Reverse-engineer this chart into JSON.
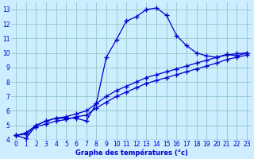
{
  "title": "Graphe des températures (°c)",
  "bg_color": "#cceeff",
  "line_color": "#0000cc",
  "grid_color": "#99cccc",
  "xlim": [
    -0.5,
    23.5
  ],
  "ylim": [
    4,
    13.5
  ],
  "xticks": [
    0,
    1,
    2,
    3,
    4,
    5,
    6,
    7,
    8,
    9,
    10,
    11,
    12,
    13,
    14,
    15,
    16,
    17,
    18,
    19,
    20,
    21,
    22,
    23
  ],
  "yticks": [
    4,
    5,
    6,
    7,
    8,
    9,
    10,
    11,
    12,
    13
  ],
  "curve1_x": [
    0,
    1,
    2,
    3,
    4,
    5,
    6,
    7,
    8,
    9,
    10,
    11,
    12,
    13,
    14,
    15,
    16,
    17,
    18,
    19,
    20,
    21,
    22,
    23
  ],
  "curve1_y": [
    4.3,
    4.1,
    5.0,
    5.3,
    5.5,
    5.5,
    5.5,
    5.3,
    6.5,
    9.7,
    10.9,
    12.2,
    12.5,
    13.0,
    13.1,
    12.6,
    11.2,
    10.5,
    10.0,
    9.8,
    9.7,
    9.9,
    9.8,
    10.0
  ],
  "curve2_x": [
    0,
    1,
    2,
    3,
    4,
    5,
    6,
    7,
    8,
    9,
    10,
    11,
    12,
    13,
    14,
    15,
    16,
    17,
    18,
    19,
    20,
    21,
    22,
    23
  ],
  "curve2_y": [
    4.3,
    4.5,
    5.0,
    5.3,
    5.5,
    5.6,
    5.8,
    6.0,
    6.5,
    7.0,
    7.4,
    7.7,
    8.0,
    8.3,
    8.5,
    8.7,
    8.9,
    9.1,
    9.3,
    9.5,
    9.7,
    9.85,
    9.95,
    10.0
  ],
  "curve3_x": [
    0,
    1,
    2,
    3,
    4,
    5,
    6,
    7,
    8,
    9,
    10,
    11,
    12,
    13,
    14,
    15,
    16,
    17,
    18,
    19,
    20,
    21,
    22,
    23
  ],
  "curve3_y": [
    4.3,
    4.4,
    4.9,
    5.1,
    5.3,
    5.4,
    5.6,
    5.7,
    6.2,
    6.6,
    7.0,
    7.3,
    7.6,
    7.9,
    8.1,
    8.3,
    8.5,
    8.7,
    8.9,
    9.1,
    9.3,
    9.55,
    9.7,
    9.85
  ],
  "marker": "+",
  "markersize": 4,
  "linewidth": 0.9
}
